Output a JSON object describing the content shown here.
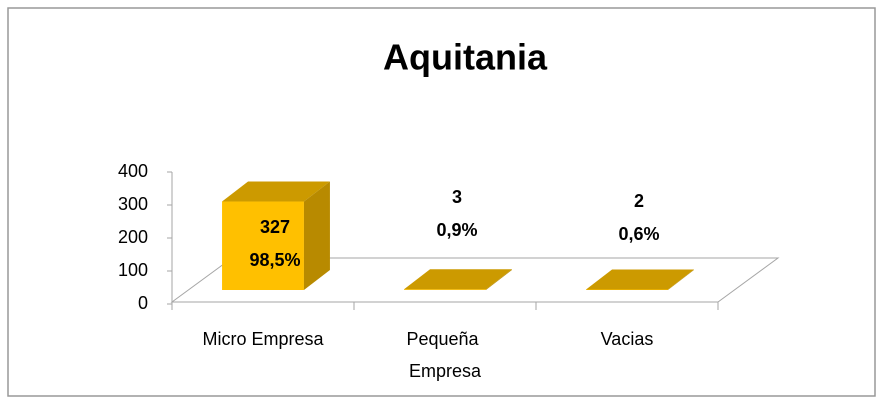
{
  "chart_data": {
    "type": "bar3d",
    "title": "Aquitania",
    "categories": [
      "Micro Empresa",
      "Pequeña Empresa",
      "Vacias"
    ],
    "values": [
      327,
      3,
      2
    ],
    "percent": [
      98.5,
      0.9,
      0.6
    ],
    "percent_labels": [
      "98,5%",
      "0,9%",
      "0,6%"
    ],
    "color": "#ffc000",
    "ylim": [
      0,
      400
    ],
    "yticks": [
      0,
      100,
      200,
      300,
      400
    ],
    "grid": false
  }
}
